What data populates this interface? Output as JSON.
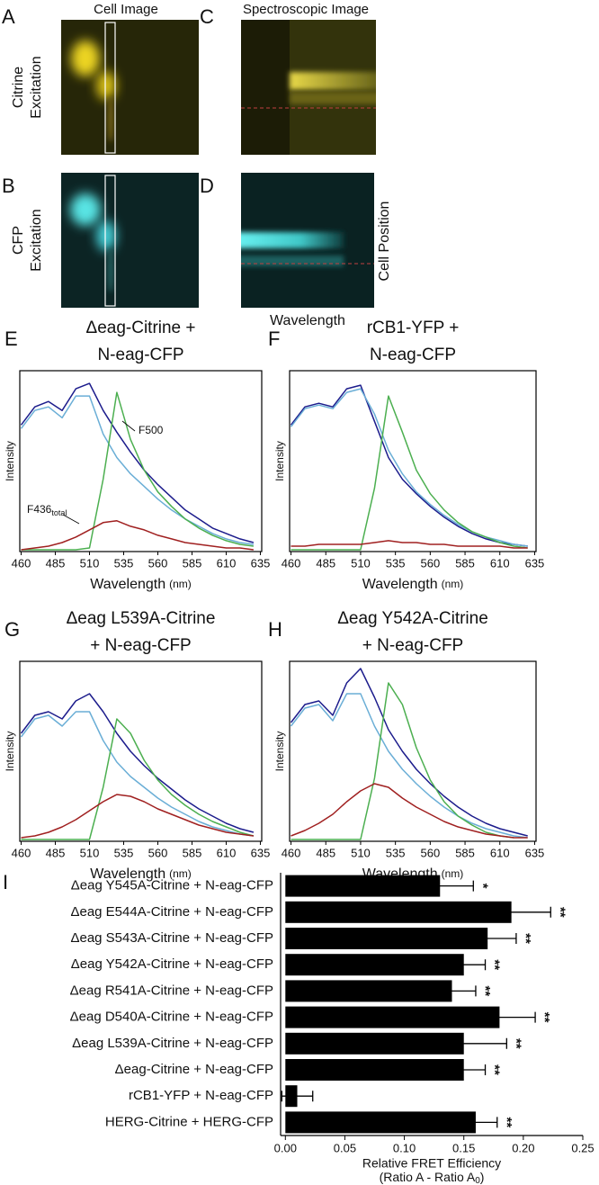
{
  "images": {
    "column_titles": [
      "Cell Image",
      "Spectroscopic Image"
    ],
    "panels": [
      {
        "letter": "A",
        "label": [
          "Citrine",
          "Excitation"
        ]
      },
      {
        "letter": "B",
        "label": [
          "CFP",
          "Excitation"
        ]
      },
      {
        "letter": "C"
      },
      {
        "letter": "D"
      }
    ],
    "x_label": "Wavelength",
    "y_label": "Cell Position"
  },
  "chart_data": [
    {
      "type": "line",
      "panel": "E",
      "title": [
        "Δeag-Citrine +",
        "N-eag-CFP"
      ],
      "ylabel": "Intensity",
      "xlabel": "Wavelength",
      "xunit": "(nm)",
      "xlim": [
        459,
        636
      ],
      "ylim": [
        0,
        1
      ],
      "xticks": [
        460,
        485,
        510,
        535,
        560,
        585,
        610,
        635
      ],
      "x": [
        460,
        470,
        480,
        490,
        500,
        510,
        520,
        530,
        540,
        550,
        560,
        570,
        580,
        590,
        600,
        610,
        620,
        630
      ],
      "series": [
        {
          "color": "#1c1c8c",
          "values": [
            0.7,
            0.8,
            0.83,
            0.78,
            0.9,
            0.93,
            0.78,
            0.66,
            0.55,
            0.45,
            0.37,
            0.3,
            0.23,
            0.18,
            0.13,
            0.1,
            0.07,
            0.05
          ]
        },
        {
          "color": "#6aaed6",
          "values": [
            0.68,
            0.78,
            0.8,
            0.74,
            0.86,
            0.86,
            0.65,
            0.52,
            0.43,
            0.36,
            0.29,
            0.23,
            0.18,
            0.14,
            0.1,
            0.07,
            0.05,
            0.04
          ]
        },
        {
          "color": "#4caf50",
          "values": [
            0.01,
            0.01,
            0.01,
            0.01,
            0.01,
            0.02,
            0.4,
            0.88,
            0.62,
            0.45,
            0.33,
            0.25,
            0.18,
            0.13,
            0.09,
            0.06,
            0.04,
            0.03
          ]
        },
        {
          "color": "#a02020",
          "values": [
            0.01,
            0.02,
            0.03,
            0.05,
            0.08,
            0.12,
            0.16,
            0.17,
            0.14,
            0.12,
            0.09,
            0.07,
            0.05,
            0.04,
            0.03,
            0.02,
            0.02,
            0.01
          ]
        }
      ],
      "annotations": [
        {
          "text": "F500"
        },
        {
          "text": "F436",
          "sub": "total"
        }
      ]
    },
    {
      "type": "line",
      "panel": "F",
      "title": [
        "rCB1-YFP +",
        "N-eag-CFP"
      ],
      "ylabel": "Intensity",
      "xlabel": "Wavelength",
      "xunit": "(nm)",
      "xlim": [
        459,
        636
      ],
      "ylim": [
        0,
        1
      ],
      "xticks": [
        460,
        485,
        510,
        535,
        560,
        585,
        610,
        635
      ],
      "x": [
        460,
        470,
        480,
        490,
        500,
        510,
        520,
        530,
        540,
        550,
        560,
        570,
        580,
        590,
        600,
        610,
        620,
        630
      ],
      "series": [
        {
          "color": "#1c1c8c",
          "values": [
            0.7,
            0.8,
            0.82,
            0.8,
            0.9,
            0.92,
            0.72,
            0.52,
            0.4,
            0.32,
            0.25,
            0.19,
            0.14,
            0.1,
            0.07,
            0.05,
            0.04,
            0.03
          ]
        },
        {
          "color": "#6aaed6",
          "values": [
            0.69,
            0.79,
            0.81,
            0.79,
            0.88,
            0.9,
            0.76,
            0.56,
            0.43,
            0.33,
            0.26,
            0.2,
            0.15,
            0.11,
            0.08,
            0.06,
            0.04,
            0.03
          ]
        },
        {
          "color": "#4caf50",
          "values": [
            0.01,
            0.01,
            0.01,
            0.01,
            0.01,
            0.01,
            0.35,
            0.86,
            0.66,
            0.45,
            0.32,
            0.23,
            0.16,
            0.11,
            0.08,
            0.05,
            0.03,
            0.02
          ]
        },
        {
          "color": "#a02020",
          "values": [
            0.03,
            0.03,
            0.04,
            0.04,
            0.04,
            0.04,
            0.05,
            0.06,
            0.05,
            0.05,
            0.04,
            0.04,
            0.03,
            0.03,
            0.03,
            0.03,
            0.02,
            0.02
          ]
        }
      ]
    },
    {
      "type": "line",
      "panel": "G",
      "title": [
        "Δeag L539A-Citrine",
        "+ N-eag-CFP"
      ],
      "ylabel": "Intensity",
      "xlabel": "Wavelength",
      "xunit": "(nm)",
      "xlim": [
        459,
        636
      ],
      "ylim": [
        0,
        1
      ],
      "xticks": [
        460,
        485,
        510,
        535,
        560,
        585,
        610,
        635
      ],
      "x": [
        460,
        470,
        480,
        490,
        500,
        510,
        520,
        530,
        540,
        550,
        560,
        570,
        580,
        590,
        600,
        610,
        620,
        630
      ],
      "series": [
        {
          "color": "#1c1c8c",
          "values": [
            0.6,
            0.7,
            0.72,
            0.68,
            0.78,
            0.82,
            0.72,
            0.6,
            0.5,
            0.42,
            0.35,
            0.29,
            0.23,
            0.18,
            0.14,
            0.1,
            0.07,
            0.05
          ]
        },
        {
          "color": "#6aaed6",
          "values": [
            0.58,
            0.68,
            0.7,
            0.64,
            0.72,
            0.72,
            0.56,
            0.44,
            0.36,
            0.3,
            0.24,
            0.19,
            0.15,
            0.11,
            0.08,
            0.06,
            0.04,
            0.03
          ]
        },
        {
          "color": "#4caf50",
          "values": [
            0.01,
            0.01,
            0.01,
            0.01,
            0.01,
            0.01,
            0.3,
            0.68,
            0.6,
            0.45,
            0.34,
            0.26,
            0.2,
            0.15,
            0.11,
            0.08,
            0.05,
            0.03
          ]
        },
        {
          "color": "#a02020",
          "values": [
            0.02,
            0.03,
            0.05,
            0.08,
            0.12,
            0.17,
            0.22,
            0.26,
            0.25,
            0.22,
            0.18,
            0.15,
            0.12,
            0.09,
            0.07,
            0.05,
            0.04,
            0.03
          ]
        }
      ]
    },
    {
      "type": "line",
      "panel": "H",
      "title": [
        "Δeag Y542A-Citrine",
        "+ N-eag-CFP"
      ],
      "ylabel": "Intensity",
      "xlabel": "Wavelength",
      "xunit": "(nm)",
      "xlim": [
        459,
        636
      ],
      "ylim": [
        0,
        1
      ],
      "xticks": [
        460,
        485,
        510,
        535,
        560,
        585,
        610,
        635
      ],
      "x": [
        460,
        470,
        480,
        490,
        500,
        510,
        520,
        530,
        540,
        550,
        560,
        570,
        580,
        590,
        600,
        610,
        620,
        630
      ],
      "series": [
        {
          "color": "#1c1c8c",
          "values": [
            0.66,
            0.76,
            0.78,
            0.7,
            0.88,
            0.96,
            0.8,
            0.62,
            0.5,
            0.4,
            0.32,
            0.25,
            0.19,
            0.14,
            0.1,
            0.07,
            0.05,
            0.03
          ]
        },
        {
          "color": "#6aaed6",
          "values": [
            0.64,
            0.74,
            0.76,
            0.67,
            0.82,
            0.82,
            0.64,
            0.5,
            0.4,
            0.32,
            0.25,
            0.19,
            0.14,
            0.1,
            0.07,
            0.05,
            0.03,
            0.02
          ]
        },
        {
          "color": "#4caf50",
          "values": [
            0.01,
            0.01,
            0.01,
            0.01,
            0.01,
            0.01,
            0.35,
            0.88,
            0.76,
            0.52,
            0.34,
            0.22,
            0.14,
            0.09,
            0.05,
            0.03,
            0.02,
            null
          ]
        },
        {
          "color": "#a02020",
          "values": [
            0.03,
            0.06,
            0.1,
            0.15,
            0.22,
            0.28,
            0.32,
            0.3,
            0.24,
            0.19,
            0.15,
            0.11,
            0.08,
            0.06,
            0.04,
            0.03,
            0.02,
            0.02
          ]
        }
      ]
    },
    {
      "type": "hbar",
      "panel": "I",
      "categories": [
        "Δeag Y545A-Citrine + N-eag-CFP",
        "Δeag E544A-Citrine + N-eag-CFP",
        "Δeag S543A-Citrine + N-eag-CFP",
        "Δeag Y542A-Citrine + N-eag-CFP",
        "Δeag R541A-Citrine + N-eag-CFP",
        "Δeag D540A-Citrine + N-eag-CFP",
        "Δeag L539A-Citrine + N-eag-CFP",
        "Δeag-Citrine + N-eag-CFP",
        "rCB1-YFP + N-eag-CFP",
        "HERG-Citrine + HERG-CFP"
      ],
      "values": [
        0.13,
        0.19,
        0.17,
        0.15,
        0.14,
        0.18,
        0.15,
        0.15,
        0.01,
        0.16
      ],
      "errors": [
        0.028,
        0.033,
        0.024,
        0.018,
        0.02,
        0.03,
        0.036,
        0.018,
        0.013,
        0.018
      ],
      "significance": [
        "*",
        "**",
        "**",
        "**",
        "**",
        "**",
        "**",
        "**",
        null,
        "**"
      ],
      "color": "#000000",
      "xlim": [
        -0.004,
        0.25
      ],
      "xticks": [
        {
          "value": 0,
          "label": "0.00"
        },
        0.05,
        {
          "value": 0.1,
          "label": "0.10"
        },
        0.15,
        {
          "value": 0.2,
          "label": "0.20"
        },
        0.25
      ],
      "xlabel": "Relative FRET Efficiency",
      "xlabel2": {
        "text": "(Ratio A - Ratio A",
        "sub": "0",
        "end": ")"
      }
    }
  ]
}
